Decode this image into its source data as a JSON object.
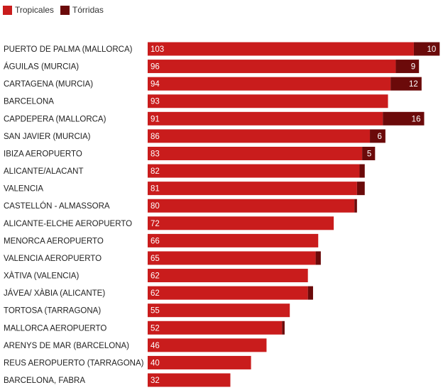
{
  "chart_data": {
    "type": "bar",
    "orientation": "horizontal",
    "stacked": true,
    "categories": [
      "PUERTO DE PALMA (MALLORCA)",
      "ÁGUILAS (MURCIA)",
      "CARTAGENA (MURCIA)",
      "BARCELONA",
      "CAPDEPERA (MALLORCA)",
      "SAN JAVIER (MURCIA)",
      "IBIZA AEROPUERTO",
      "ALICANTE/ALACANT",
      "VALENCIA",
      "CASTELLÓN - ALMASSORA",
      "ALICANTE-ELCHE AEROPUERTO",
      "MENORCA AEROPUERTO",
      "VALENCIA AEROPUERTO",
      "XÀTIVA (VALENCIA)",
      "JÁVEA/ XÀBIA (ALICANTE)",
      "TORTOSA (TARRAGONA)",
      "MALLORCA AEROPUERTO",
      "ARENYS DE MAR (BARCELONA)",
      "REUS AEROPUERTO (TARRAGONA)",
      "BARCELONA, FABRA"
    ],
    "series": [
      {
        "name": "Tropicales",
        "color": "#c91c1c",
        "values": [
          103,
          96,
          94,
          93,
          91,
          86,
          83,
          82,
          81,
          80,
          72,
          66,
          65,
          62,
          62,
          55,
          52,
          46,
          40,
          32
        ]
      },
      {
        "name": "Tórridas",
        "color": "#6b0a0a",
        "values": [
          10,
          9,
          12,
          0,
          16,
          6,
          5,
          2,
          3,
          1,
          0,
          0,
          2,
          0,
          2,
          0,
          1,
          0,
          0,
          0
        ]
      }
    ],
    "labeled_torridas": [
      true,
      true,
      true,
      false,
      true,
      true,
      true,
      false,
      false,
      false,
      false,
      false,
      false,
      false,
      false,
      false,
      false,
      false,
      false,
      false
    ],
    "legend": "top-left",
    "grid": false
  }
}
